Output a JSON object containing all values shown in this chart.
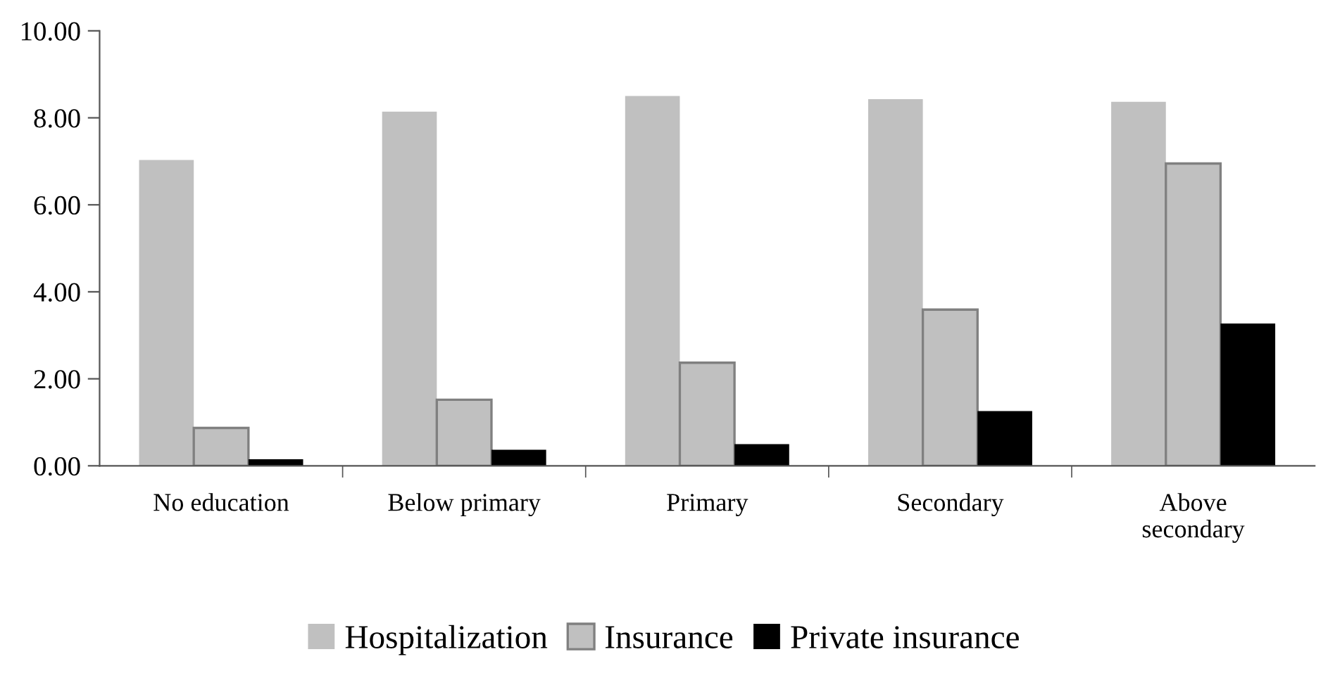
{
  "chart_data": {
    "type": "bar",
    "categories": [
      "No education",
      "Below primary",
      "Primary",
      "Secondary",
      "Above\nsecondary"
    ],
    "series": [
      {
        "name": "Hospitalization",
        "color": "#c0c0c0",
        "values": [
          7.03,
          8.14,
          8.5,
          8.43,
          8.37
        ]
      },
      {
        "name": "Insurance",
        "color": "#c0c0c0",
        "values": [
          0.87,
          1.52,
          2.37,
          3.59,
          6.95
        ]
      },
      {
        "name": "Private insurance",
        "color": "#000000",
        "values": [
          0.15,
          0.37,
          0.5,
          1.26,
          3.27
        ]
      }
    ],
    "ylim": [
      0,
      10
    ],
    "yticks": [
      {
        "value": 0,
        "label": "0.00"
      },
      {
        "value": 2,
        "label": "2.00"
      },
      {
        "value": 4,
        "label": "4.00"
      },
      {
        "value": 6,
        "label": "6.00"
      },
      {
        "value": 8,
        "label": "8.00"
      },
      {
        "value": 10,
        "label": "10.00"
      }
    ],
    "grid": false,
    "legend": "bottom"
  }
}
